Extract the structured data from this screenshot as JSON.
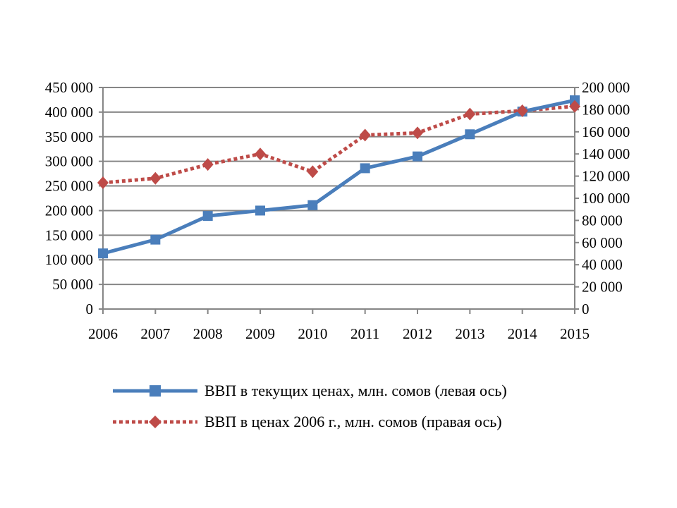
{
  "chart_data": {
    "type": "line",
    "title": "",
    "x": [
      "2006",
      "2007",
      "2008",
      "2009",
      "2010",
      "2011",
      "2012",
      "2013",
      "2014",
      "2015"
    ],
    "y_left": {
      "ylim": [
        0,
        450000
      ],
      "ticks": [
        "0",
        "50 000",
        "100 000",
        "150 000",
        "200 000",
        "250 000",
        "300 000",
        "350 000",
        "400 000",
        "450 000"
      ]
    },
    "y_right": {
      "ylim": [
        0,
        200000
      ],
      "ticks": [
        "0",
        "20 000",
        "40 000",
        "60 000",
        "80 000",
        "100 000",
        "120 000",
        "140 000",
        "160 000",
        "180 000",
        "200 000"
      ]
    },
    "grid": true,
    "legend_position": "bottom",
    "series": [
      {
        "name": "ВВП в текущих ценах, млн. сомов (левая ось)",
        "axis": "left",
        "color": "#4a7ebb",
        "style": "solid",
        "marker": "square",
        "values": [
          113000,
          141000,
          189000,
          200000,
          211000,
          286000,
          310000,
          355000,
          401000,
          424000
        ]
      },
      {
        "name": "ВВП в ценах 2006 г., млн. сомов (правая ось)",
        "axis": "right",
        "color": "#be4b48",
        "style": "dotted",
        "marker": "diamond",
        "values": [
          114000,
          118000,
          130500,
          140000,
          124000,
          157000,
          159000,
          176000,
          179000,
          183000
        ]
      }
    ]
  }
}
